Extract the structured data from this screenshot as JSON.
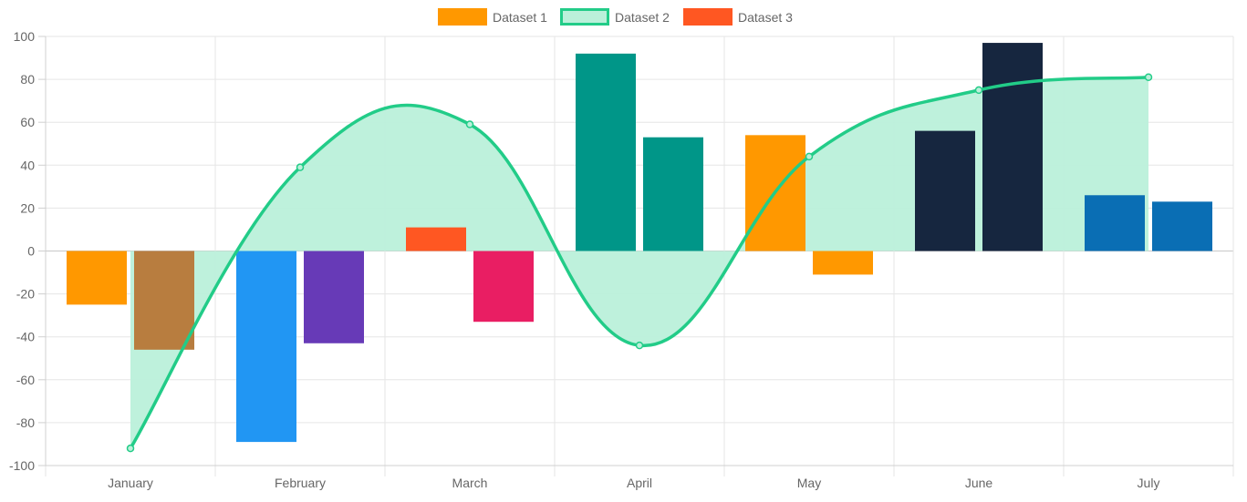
{
  "chart_data": {
    "type": "bar",
    "categories": [
      "January",
      "February",
      "March",
      "April",
      "May",
      "June",
      "July"
    ],
    "ylim": [
      -100,
      100
    ],
    "yticks": [
      100,
      80,
      60,
      40,
      20,
      0,
      -20,
      -40,
      -60,
      -80,
      -100
    ],
    "grid": true,
    "legend_position": "top",
    "series": [
      {
        "name": "Dataset 1",
        "type": "bar",
        "values": [
          -25,
          -89,
          11,
          92,
          54,
          56,
          26
        ],
        "legend_color": "#FF9800",
        "colors": [
          "#FF9800",
          "#2196F3",
          "#FF5722",
          "#009688",
          "#FF9800",
          "#16263F",
          "#0A6EB4"
        ]
      },
      {
        "name": "Dataset 2",
        "type": "line",
        "values": [
          -92,
          39,
          59,
          -44,
          44,
          75,
          81
        ],
        "border_color": "#22CC88",
        "fill_color": "#BBF0DA"
      },
      {
        "name": "Dataset 3",
        "type": "bar",
        "values": [
          -46,
          -43,
          -33,
          53,
          -11,
          97,
          23
        ],
        "legend_color": "#FF5722",
        "colors": [
          "#B87D3F",
          "#673AB7",
          "#E91E63",
          "#009688",
          "#FF9800",
          "#16263F",
          "#0A6EB4"
        ],
        "stacked_top": [
          null,
          null,
          null,
          null,
          null,
          {
            "value": 97,
            "color": "#16263F"
          },
          null
        ]
      }
    ]
  }
}
